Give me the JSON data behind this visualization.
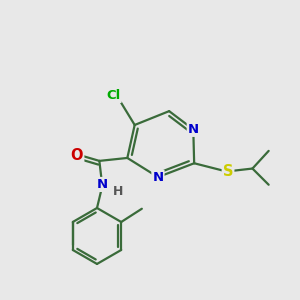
{
  "background_color": "#e8e8e8",
  "bond_color": "#3a6b3a",
  "bond_width": 1.6,
  "atom_colors": {
    "N": "#0000cc",
    "O": "#cc0000",
    "S": "#cccc00",
    "Cl": "#00aa00",
    "C": "#3a6b3a",
    "H": "#555555"
  },
  "font_size": 9.5,
  "figsize": [
    3.0,
    3.0
  ],
  "dpi": 100
}
